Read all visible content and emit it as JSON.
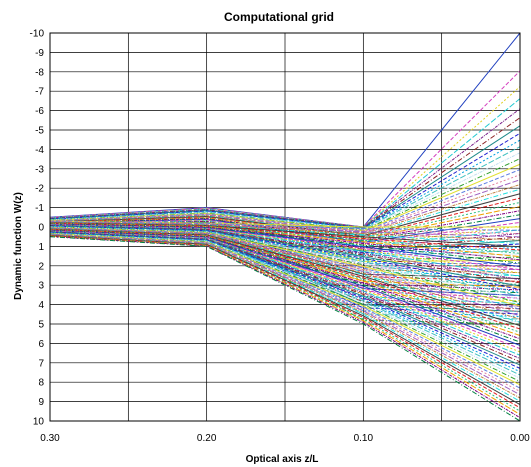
{
  "chart_data": {
    "type": "line",
    "title": "Computational grid",
    "xlabel": "Optical axis z/L",
    "ylabel": "Dynamic function W(z)",
    "xlim": [
      0.3,
      0.0
    ],
    "ylim": [
      -10,
      10
    ],
    "y_inverted": true,
    "x_reversed": true,
    "grid": true,
    "legend": "none",
    "x_ticks": [
      "0.30",
      "0.20",
      "0.10",
      "0.00"
    ],
    "y_ticks": [
      "-10",
      "-9",
      "-8",
      "-7",
      "-6",
      "-5",
      "-4",
      "-3",
      "-2",
      "-1",
      "0",
      "1",
      "2",
      "3",
      "4",
      "5",
      "6",
      "7",
      "8",
      "9",
      "10"
    ],
    "x": [
      0.3,
      0.2,
      0.1,
      0.0
    ],
    "series_description_family": {
      "upper_group": {
        "x": [
          0.3,
          0.2,
          0.1,
          0.0
        ],
        "y_at_0_30": [
          -0.5,
          0.3
        ],
        "y_at_0_20": [
          -1.0,
          0.5
        ],
        "y_at_0_10": [
          0.0,
          4.8
        ],
        "y_at_0_00": [
          -10,
          5
        ]
      },
      "lower_group": {
        "x": [
          0.3,
          0.2,
          0.1,
          0.0
        ],
        "y_at_0_30": [
          -0.3,
          0.5
        ],
        "y_at_0_20": [
          -0.2,
          1.0
        ],
        "y_at_0_10": [
          0.0,
          5.0
        ],
        "y_at_0_00": [
          0.0,
          10
        ]
      }
    },
    "series_count": 120
  }
}
